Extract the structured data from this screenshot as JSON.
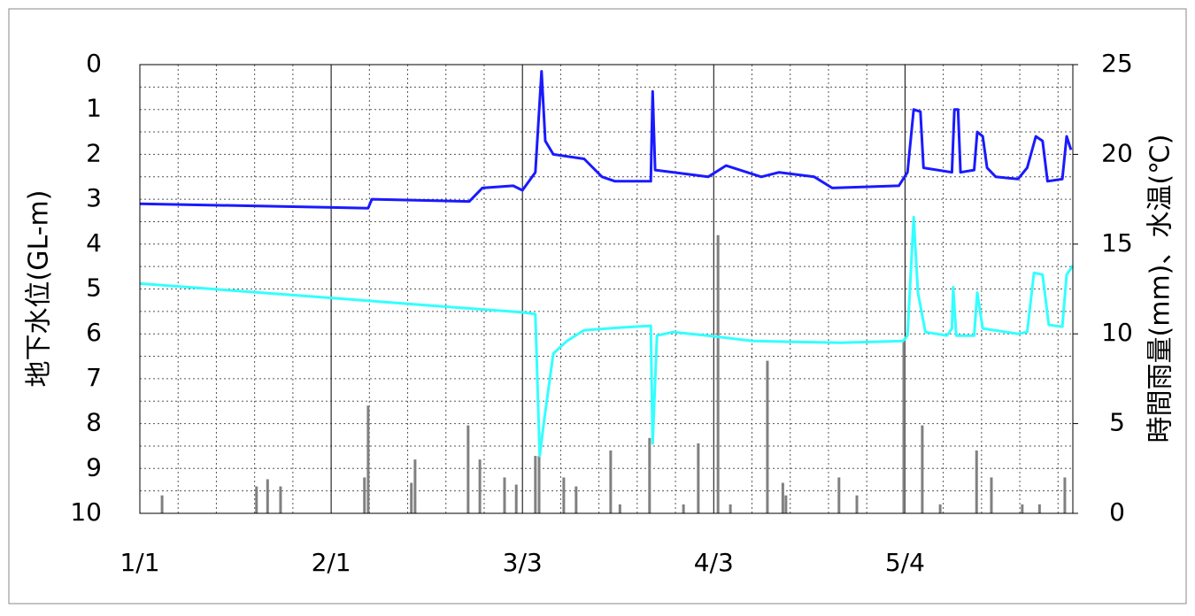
{
  "chart_data": {
    "type": "line",
    "ylabel": "地下水位(GL-m)",
    "y2label": "時間雨量(mm)、水温(℃)",
    "xlim": [
      0,
      151.2
    ],
    "xticks": [
      {
        "value": 0,
        "label": "1/1"
      },
      {
        "value": 31,
        "label": "2/1"
      },
      {
        "value": 62,
        "label": "3/3"
      },
      {
        "value": 93,
        "label": "4/3"
      },
      {
        "value": 124,
        "label": "5/4"
      }
    ],
    "ylim": [
      0,
      10
    ],
    "yreverse": true,
    "yticks": [
      0,
      1,
      2,
      3,
      4,
      5,
      6,
      7,
      8,
      9,
      10
    ],
    "y2lim": [
      0,
      25
    ],
    "y2ticks": [
      0,
      5,
      10,
      15,
      20,
      25
    ],
    "grid": true,
    "series": [
      {
        "type": "bar",
        "axis": "y2",
        "color": "#808080",
        "x": [
          3.6,
          18.9,
          20.7,
          22.8,
          36.4,
          37,
          44,
          44.6,
          53.2,
          55.1,
          59.1,
          61,
          64.1,
          64.7,
          68.7,
          70.7,
          76.3,
          77.8,
          82.6,
          88.1,
          90.5,
          93.7,
          95.7,
          101.7,
          104.2,
          104.7,
          113.3,
          116.2,
          123.8,
          126.8,
          129.7,
          135.6,
          138,
          143,
          145.8,
          149.9
        ],
        "values": [
          1.0,
          1.5,
          1.9,
          1.5,
          2.0,
          6.0,
          1.7,
          3.0,
          4.9,
          3.0,
          2.0,
          1.6,
          3.2,
          3.2,
          2.0,
          1.5,
          3.5,
          0.5,
          4.2,
          0.5,
          3.9,
          15.5,
          0.5,
          8.5,
          1.7,
          1.0,
          2.0,
          1.0,
          9.6,
          4.9,
          0.5,
          3.5,
          2.0,
          0.5,
          0.5,
          2.0
        ]
      },
      {
        "type": "line",
        "axis": "y2",
        "color": "#33ffff",
        "x": [
          0,
          31,
          46.2,
          62,
          64.1,
          64.8,
          65.6,
          67,
          69.2,
          72,
          77.8,
          82.8,
          83.1,
          83.8,
          86.4,
          92.1,
          99.3,
          113.6,
          123.7,
          124.4,
          125.4,
          126.1,
          127.3,
          130.8,
          131.6,
          131.8,
          132.3,
          135.2,
          135.7,
          136.6,
          142.3,
          143.8,
          144.9,
          146.3,
          147.3,
          149.5,
          150.2,
          151.2
        ],
        "values": [
          12.8,
          12.0,
          11.6,
          11.2,
          11.1,
          3.2,
          5.4,
          8.9,
          9.6,
          10.2,
          10.35,
          10.45,
          3.9,
          9.9,
          10.1,
          9.9,
          9.6,
          9.5,
          9.6,
          9.9,
          16.5,
          12.3,
          10.1,
          9.9,
          10.3,
          12.6,
          9.9,
          9.9,
          12.3,
          10.3,
          10.0,
          10.1,
          13.4,
          13.3,
          10.5,
          10.4,
          13.3,
          13.8
        ]
      },
      {
        "type": "line",
        "axis": "y",
        "color": "#1a1aff",
        "x": [
          0,
          37,
          37.6,
          53.4,
          55.5,
          60.5,
          62,
          64.1,
          65.1,
          65.7,
          67,
          72,
          74.9,
          77,
          82.8,
          83.1,
          83.5,
          92.1,
          95,
          100.7,
          103.6,
          109.3,
          112.2,
          123,
          124.4,
          125.4,
          126.5,
          127,
          131.6,
          132,
          132.6,
          133,
          135.2,
          135.7,
          136.6,
          137.3,
          138.7,
          142.3,
          143.8,
          145.2,
          146.3,
          147.1,
          149.5,
          150.2,
          150.9
        ],
        "values": [
          3.1,
          3.2,
          3.0,
          3.05,
          2.75,
          2.7,
          2.8,
          2.4,
          0.15,
          1.7,
          2.0,
          2.1,
          2.5,
          2.6,
          2.6,
          0.6,
          2.35,
          2.5,
          2.25,
          2.5,
          2.4,
          2.5,
          2.75,
          2.7,
          2.4,
          1.0,
          1.05,
          2.3,
          2.4,
          1.0,
          1.0,
          2.4,
          2.35,
          1.5,
          1.6,
          2.3,
          2.5,
          2.55,
          2.3,
          1.6,
          1.7,
          2.6,
          2.55,
          1.6,
          1.9
        ]
      }
    ]
  }
}
